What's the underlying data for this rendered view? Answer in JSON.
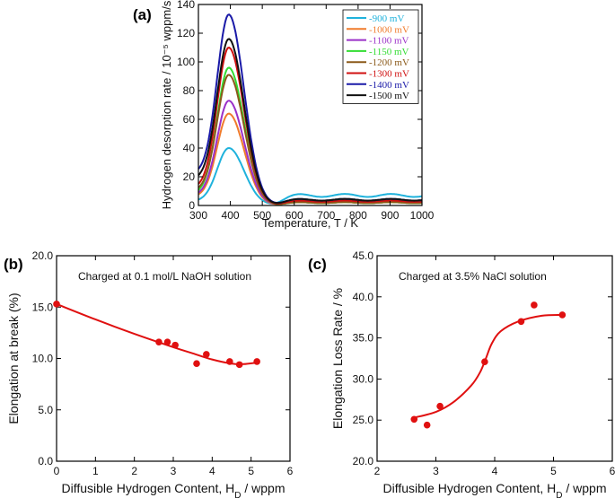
{
  "chart_data": [
    {
      "type": "line",
      "panel_label": "(a)",
      "title": "",
      "xlabel": "Temperature, T / K",
      "ylabel": "Hydrogen desorption rate / 10⁻⁵ wppm/s",
      "xlim": [
        300,
        1000
      ],
      "ylim": [
        0,
        140
      ],
      "xticks": [
        "300",
        "400",
        "500",
        "600",
        "700",
        "800",
        "900",
        "1000"
      ],
      "yticks": [
        "0",
        "20",
        "40",
        "60",
        "80",
        "100",
        "120",
        "140"
      ],
      "legend_position": "top-right",
      "peak_temperature": 395,
      "series": [
        {
          "name": "-900 mV",
          "color": "#1fb2dc",
          "peak": 40,
          "base": 3,
          "tail_level": 7
        },
        {
          "name": "-1000 mV",
          "color": "#f07b2c",
          "peak": 64,
          "base": 6,
          "tail_level": 2
        },
        {
          "name": "-1100 mV",
          "color": "#9b30c8",
          "peak": 73,
          "base": 7,
          "tail_level": 3
        },
        {
          "name": "-1150 mV",
          "color": "#33dd33",
          "peak": 96,
          "base": 8,
          "tail_level": 2
        },
        {
          "name": "-1200 mV",
          "color": "#8b5a1a",
          "peak": 91,
          "base": 10,
          "tail_level": 2
        },
        {
          "name": "-1300 mV",
          "color": "#d01010",
          "peak": 110,
          "base": 12,
          "tail_level": 3
        },
        {
          "name": "-1400 mV",
          "color": "#1a1aa8",
          "peak": 133,
          "base": 22,
          "tail_level": 4
        },
        {
          "name": "-1500 mV",
          "color": "#111111",
          "peak": 116,
          "base": 18,
          "tail_level": 4
        }
      ]
    },
    {
      "type": "scatter",
      "panel_label": "(b)",
      "annotation": "Charged at 0.1 mol/L NaOH solution",
      "xlabel_main": "Diffusible Hydrogen Content, H",
      "xlabel_sub": "D",
      "xlabel_tail": " / wppm",
      "ylabel": "Elongation at break (%)",
      "xlim": [
        0,
        6
      ],
      "ylim": [
        0,
        20
      ],
      "xticks": [
        "0",
        "1",
        "2",
        "3",
        "4",
        "5",
        "6"
      ],
      "yticks": [
        "0.0",
        "5.0",
        "10.0",
        "15.0",
        "20.0"
      ],
      "color": "#e01010",
      "points": [
        [
          0.0,
          15.3
        ],
        [
          2.63,
          11.6
        ],
        [
          2.85,
          11.6
        ],
        [
          3.05,
          11.3
        ],
        [
          3.6,
          9.5
        ],
        [
          3.85,
          10.4
        ],
        [
          4.45,
          9.7
        ],
        [
          4.7,
          9.4
        ],
        [
          5.15,
          9.7
        ]
      ],
      "fit_curve": [
        [
          0.0,
          15.3
        ],
        [
          1.0,
          13.8
        ],
        [
          2.0,
          12.4
        ],
        [
          3.0,
          11.1
        ],
        [
          3.5,
          10.5
        ],
        [
          4.0,
          9.9
        ],
        [
          4.5,
          9.5
        ],
        [
          4.8,
          9.45
        ],
        [
          5.15,
          9.6
        ]
      ]
    },
    {
      "type": "scatter",
      "panel_label": "(c)",
      "annotation": "Charged at 3.5% NaCl solution",
      "xlabel_main": "Diffusible Hydrogen Content, H",
      "xlabel_sub": "D",
      "xlabel_tail": " / wppm",
      "ylabel": "Elongation Loss Rate / %",
      "xlim": [
        2,
        6
      ],
      "ylim": [
        20,
        45
      ],
      "xticks": [
        "2",
        "3",
        "4",
        "5",
        "6"
      ],
      "yticks": [
        "20.0",
        "25.0",
        "30.0",
        "35.0",
        "40.0",
        "45.0"
      ],
      "color": "#e01010",
      "points": [
        [
          2.63,
          25.1
        ],
        [
          2.85,
          24.4
        ],
        [
          3.07,
          26.7
        ],
        [
          3.83,
          32.1
        ],
        [
          4.45,
          37.0
        ],
        [
          4.67,
          39.0
        ],
        [
          5.15,
          37.8
        ]
      ],
      "fit_curve": [
        [
          2.63,
          25.3
        ],
        [
          3.0,
          26.0
        ],
        [
          3.3,
          27.2
        ],
        [
          3.6,
          29.2
        ],
        [
          3.75,
          30.8
        ],
        [
          3.85,
          32.5
        ],
        [
          3.95,
          34.3
        ],
        [
          4.1,
          35.8
        ],
        [
          4.4,
          37.0
        ],
        [
          4.8,
          37.7
        ],
        [
          5.15,
          37.8
        ]
      ]
    }
  ]
}
